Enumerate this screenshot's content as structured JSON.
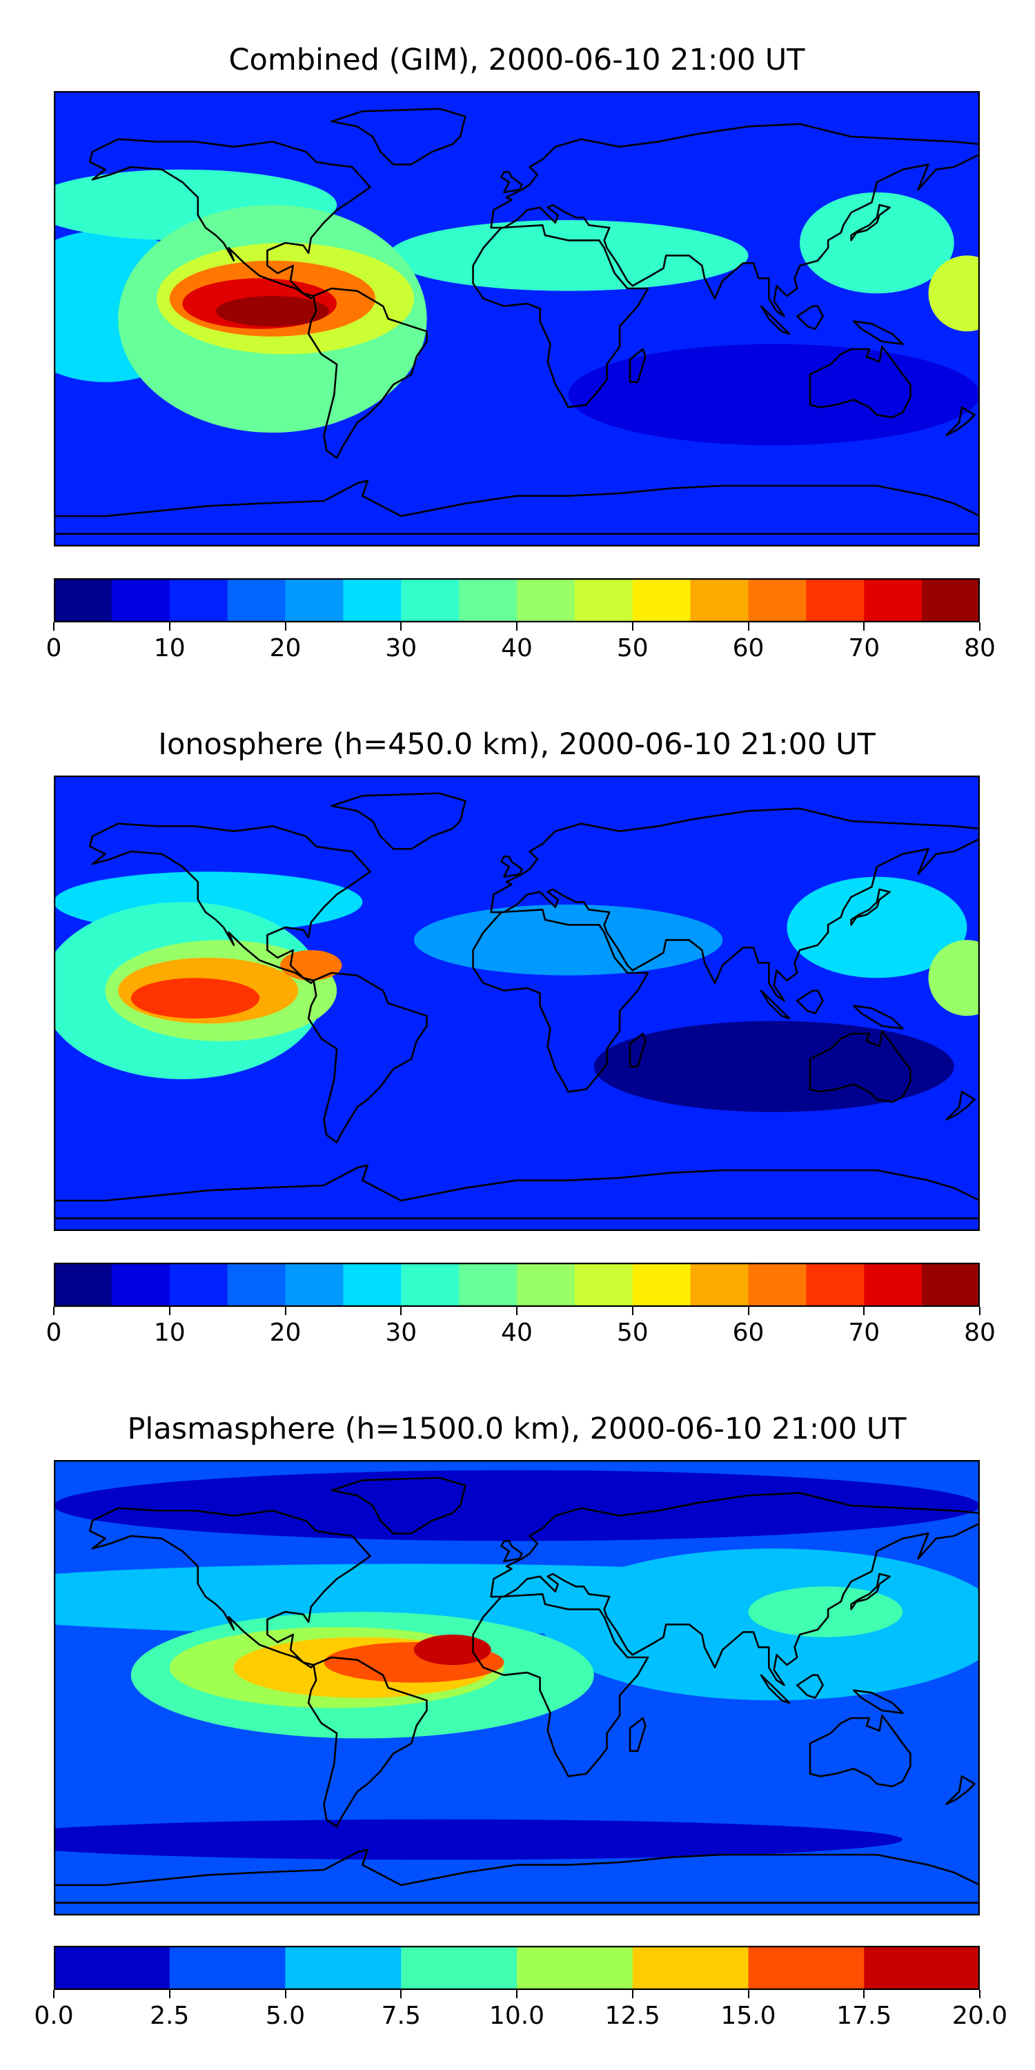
{
  "panels": [
    {
      "title": "Combined (GIM), 2000-06-10 21:00 UT",
      "colorbar": {
        "ticks": [
          "0",
          "10",
          "20",
          "30",
          "40",
          "50",
          "60",
          "70",
          "80"
        ],
        "colors": [
          "#00008f",
          "#0000e0",
          "#0022ff",
          "#0066ff",
          "#0099ff",
          "#00ddff",
          "#33ffcc",
          "#66ff99",
          "#99ff66",
          "#ccff33",
          "#ffee00",
          "#ffaa00",
          "#ff7700",
          "#ff3300",
          "#e00000",
          "#990000"
        ]
      },
      "field": {
        "base_color": "#0022ff",
        "features": [
          {
            "lon": -130,
            "lat": 45,
            "rlon": 60,
            "rlat": 14,
            "level": 6
          },
          {
            "lon": -160,
            "lat": 5,
            "rlon": 40,
            "rlat": 30,
            "level": 5
          },
          {
            "lon": -90,
            "lat": 8,
            "rlon": 50,
            "rlat": 22,
            "level": 9
          },
          {
            "lon": -95,
            "lat": 8,
            "rlon": 40,
            "rlat": 15,
            "level": 12
          },
          {
            "lon": -100,
            "lat": 6,
            "rlon": 30,
            "rlat": 10,
            "level": 14
          },
          {
            "lon": -95,
            "lat": 3,
            "rlon": 22,
            "rlat": 6,
            "level": 15
          },
          {
            "lon": -95,
            "lat": 0,
            "rlon": 60,
            "rlat": 45,
            "level": 7
          },
          {
            "lon": 20,
            "lat": 25,
            "rlon": 70,
            "rlat": 14,
            "level": 6
          },
          {
            "lon": 140,
            "lat": 30,
            "rlon": 30,
            "rlat": 20,
            "level": 6
          },
          {
            "lon": 175,
            "lat": 10,
            "rlon": 15,
            "rlat": 15,
            "level": 9
          },
          {
            "lon": 100,
            "lat": -30,
            "rlon": 80,
            "rlat": 20,
            "level": 1
          }
        ]
      }
    },
    {
      "title": "Ionosphere  (h=450.0 km), 2000-06-10 21:00 UT",
      "colorbar": {
        "ticks": [
          "0",
          "10",
          "20",
          "30",
          "40",
          "50",
          "60",
          "70",
          "80"
        ],
        "colors": [
          "#00008f",
          "#0000e0",
          "#0022ff",
          "#0066ff",
          "#0099ff",
          "#00ddff",
          "#33ffcc",
          "#66ff99",
          "#99ff66",
          "#ccff33",
          "#ffee00",
          "#ffaa00",
          "#ff7700",
          "#ff3300",
          "#e00000",
          "#990000"
        ]
      },
      "field": {
        "base_color": "#0022ff",
        "features": [
          {
            "lon": -120,
            "lat": 40,
            "rlon": 60,
            "rlat": 12,
            "level": 5
          },
          {
            "lon": -130,
            "lat": 5,
            "rlon": 55,
            "rlat": 35,
            "level": 6
          },
          {
            "lon": -115,
            "lat": 5,
            "rlon": 45,
            "rlat": 20,
            "level": 8
          },
          {
            "lon": -120,
            "lat": 5,
            "rlon": 35,
            "rlat": 13,
            "level": 11
          },
          {
            "lon": -125,
            "lat": 2,
            "rlon": 25,
            "rlat": 8,
            "level": 13
          },
          {
            "lon": -80,
            "lat": 15,
            "rlon": 12,
            "rlat": 6,
            "level": 12
          },
          {
            "lon": 20,
            "lat": 25,
            "rlon": 60,
            "rlat": 14,
            "level": 4
          },
          {
            "lon": 140,
            "lat": 30,
            "rlon": 35,
            "rlat": 20,
            "level": 5
          },
          {
            "lon": 175,
            "lat": 10,
            "rlon": 15,
            "rlat": 15,
            "level": 8
          },
          {
            "lon": 100,
            "lat": -25,
            "rlon": 70,
            "rlat": 18,
            "level": 0
          }
        ]
      }
    },
    {
      "title": "Plasmasphere (h=1500.0 km), 2000-06-10 21:00 UT",
      "colorbar": {
        "ticks": [
          "0.0",
          "2.5",
          "5.0",
          "7.5",
          "10.0",
          "12.5",
          "15.0",
          "17.5",
          "20.0"
        ],
        "colors": [
          "#0000c8",
          "#0050ff",
          "#00c0ff",
          "#40ffb0",
          "#a0ff50",
          "#ffcc00",
          "#ff5000",
          "#c80000"
        ]
      },
      "field": {
        "base_color": "#0050ff",
        "features": [
          {
            "lon": 0,
            "lat": 72,
            "rlon": 180,
            "rlat": 14,
            "level": 0
          },
          {
            "lon": -40,
            "lat": 35,
            "rlon": 200,
            "rlat": 14,
            "level": 2
          },
          {
            "lon": 100,
            "lat": 25,
            "rlon": 90,
            "rlat": 30,
            "level": 2
          },
          {
            "lon": 120,
            "lat": 30,
            "rlon": 30,
            "rlat": 10,
            "level": 3
          },
          {
            "lon": -60,
            "lat": 5,
            "rlon": 90,
            "rlat": 25,
            "level": 3
          },
          {
            "lon": -70,
            "lat": 8,
            "rlon": 65,
            "rlat": 16,
            "level": 4
          },
          {
            "lon": -60,
            "lat": 8,
            "rlon": 50,
            "rlat": 12,
            "level": 5
          },
          {
            "lon": -40,
            "lat": 10,
            "rlon": 35,
            "rlat": 8,
            "level": 6
          },
          {
            "lon": -25,
            "lat": 15,
            "rlon": 15,
            "rlat": 6,
            "level": 7
          },
          {
            "lon": -20,
            "lat": -25,
            "rlon": 80,
            "rlat": 12,
            "level": 1
          },
          {
            "lon": 80,
            "lat": -35,
            "rlon": 90,
            "rlat": 10,
            "level": 1
          },
          {
            "lon": -30,
            "lat": -60,
            "rlon": 180,
            "rlat": 8,
            "level": 0
          }
        ]
      }
    }
  ]
}
